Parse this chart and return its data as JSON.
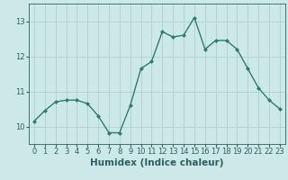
{
  "x": [
    0,
    1,
    2,
    3,
    4,
    5,
    6,
    7,
    8,
    9,
    10,
    11,
    12,
    13,
    14,
    15,
    16,
    17,
    18,
    19,
    20,
    21,
    22,
    23
  ],
  "y": [
    10.15,
    10.45,
    10.7,
    10.75,
    10.75,
    10.65,
    10.3,
    9.82,
    9.82,
    10.6,
    11.65,
    11.85,
    12.7,
    12.55,
    12.6,
    13.1,
    12.2,
    12.45,
    12.45,
    12.2,
    11.65,
    11.1,
    10.75,
    10.5
  ],
  "line_color": "#2d7d6e",
  "marker": "D",
  "marker_size": 2,
  "bg_color": "#cce8e8",
  "grid_color": "#b0d0d0",
  "xlabel": "Humidex (Indice chaleur)",
  "xlabel_fontsize": 7.5,
  "xlim": [
    -0.5,
    23.5
  ],
  "ylim": [
    9.5,
    13.5
  ],
  "yticks": [
    10,
    11,
    12,
    13
  ],
  "xticks": [
    0,
    1,
    2,
    3,
    4,
    5,
    6,
    7,
    8,
    9,
    10,
    11,
    12,
    13,
    14,
    15,
    16,
    17,
    18,
    19,
    20,
    21,
    22,
    23
  ],
  "tick_fontsize": 6,
  "line_width": 1.0,
  "tick_color": "#2d6060",
  "label_color": "#2d6060"
}
